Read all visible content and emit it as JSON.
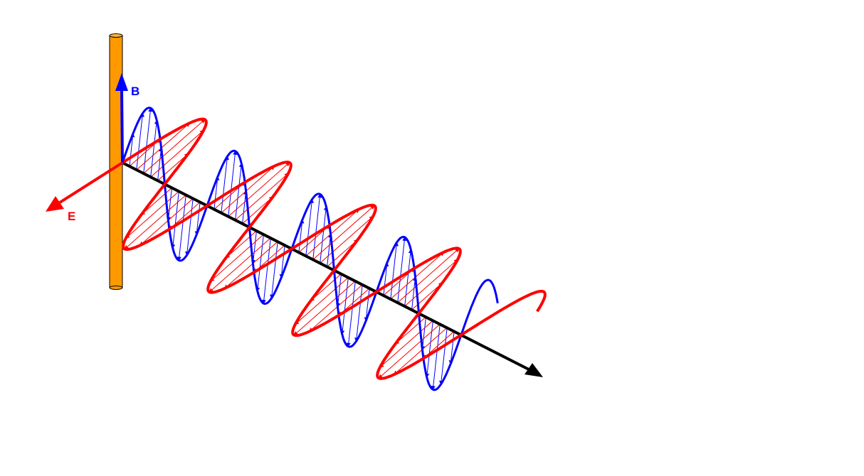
{
  "labels": {
    "b_field": "B",
    "e_field": "E"
  },
  "colors": {
    "b_field": "#0000ff",
    "e_field": "#ff0000",
    "antenna": "#ff9900",
    "propagation_axis": "#000000"
  }
}
